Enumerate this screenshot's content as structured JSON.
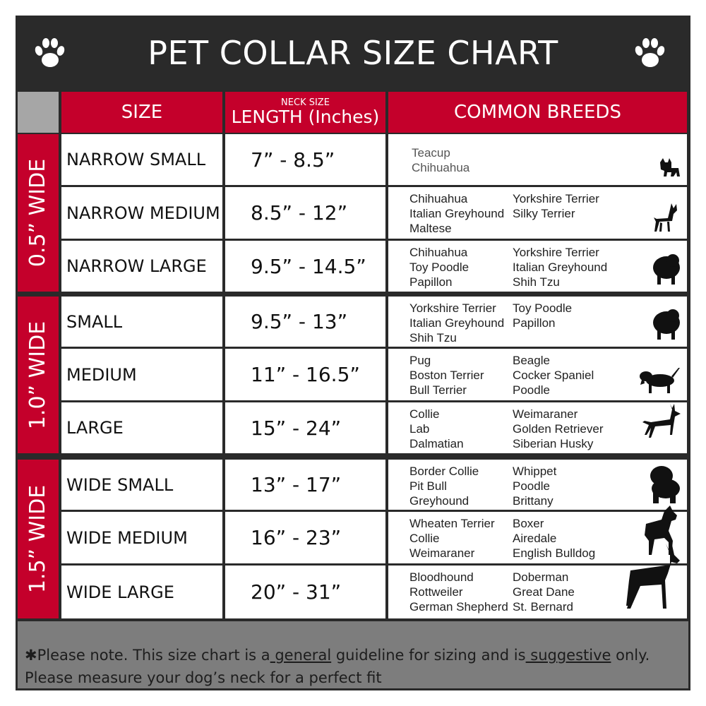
{
  "title": "PET COLLAR SIZE CHART",
  "colors": {
    "red": "#c4002b",
    "dark": "#2a2a2a",
    "footer": "#7d7d7d"
  },
  "header": {
    "size": "SIZE",
    "length_small": "NECK SIZE",
    "length": "LENGTH (Inches)",
    "breeds": "COMMON BREEDS"
  },
  "groups": [
    {
      "label": "0.5” WIDE",
      "rows": [
        {
          "size": "NARROW SMALL",
          "length": "7” - 8.5”",
          "breeds_left": [
            "Teacup",
            "Chihuahua"
          ],
          "breeds_right": [],
          "icon": "yorkie-silhouette-icon"
        },
        {
          "size": "NARROW MEDIUM",
          "length": "8.5” - 12”",
          "breeds_left": [
            "Chihuahua",
            "Italian Greyhound",
            "Maltese"
          ],
          "breeds_right": [
            "Yorkshire Terrier",
            "Silky Terrier"
          ],
          "icon": "chihuahua-silhouette-icon"
        },
        {
          "size": "NARROW LARGE",
          "length": "9.5” - 14.5”",
          "breeds_left": [
            "Chihuahua",
            "Toy Poodle",
            "Papillon"
          ],
          "breeds_right": [
            "Yorkshire Terrier",
            "Italian Greyhound",
            "Shih Tzu"
          ],
          "icon": "pomeranian-silhouette-icon"
        }
      ]
    },
    {
      "label": "1.0” WIDE",
      "rows": [
        {
          "size": "SMALL",
          "length": "9.5” - 13”",
          "breeds_left": [
            "Yorkshire Terrier",
            "Italian Greyhound",
            "Shih Tzu"
          ],
          "breeds_right": [
            "Toy Poodle",
            "Papillon"
          ],
          "icon": "pomeranian-silhouette-icon"
        },
        {
          "size": "MEDIUM",
          "length": "11” - 16.5”",
          "breeds_left": [
            "Pug",
            "Boston Terrier",
            "Bull Terrier"
          ],
          "breeds_right": [
            "Beagle",
            "Cocker Spaniel",
            "Poodle"
          ],
          "icon": "dachshund-silhouette-icon"
        },
        {
          "size": "LARGE",
          "length": "15” - 24”",
          "breeds_left": [
            "Collie",
            "Lab",
            "Dalmatian"
          ],
          "breeds_right": [
            "Weimaraner",
            "Golden Retriever",
            "Siberian Husky"
          ],
          "icon": "shepherd-silhouette-icon"
        }
      ]
    },
    {
      "label": "1.5” WIDE",
      "rows": [
        {
          "size": "WIDE SMALL",
          "length": "13” - 17”",
          "breeds_left": [
            "Border Collie",
            "Pit Bull",
            "Greyhound"
          ],
          "breeds_right": [
            "Whippet",
            "Poodle",
            "Brittany"
          ],
          "icon": "bulldog-silhouette-icon"
        },
        {
          "size": "WIDE MEDIUM",
          "length": "16” - 23”",
          "breeds_left": [
            "Wheaten Terrier",
            "Collie",
            "Weimaraner"
          ],
          "breeds_right": [
            "Boxer",
            "Airedale",
            "English Bulldog"
          ],
          "icon": "pitbull-silhouette-icon"
        },
        {
          "size": "WIDE LARGE",
          "length": "20” - 31”",
          "breeds_left": [
            "Bloodhound",
            "Rottweiler",
            "German Shepherd"
          ],
          "breeds_right": [
            "Doberman",
            "Great Dane",
            "St. Bernard"
          ],
          "icon": "doberman-silhouette-icon"
        }
      ]
    }
  ],
  "footer": {
    "line1_a": "✱Please note. This size chart is a",
    "line1_b": " general",
    "line1_c": " guideline for sizing and is",
    "line1_d": " suggestive",
    "line1_e": " only.",
    "line2": "Please measure your dog’s neck for a perfect fit"
  }
}
